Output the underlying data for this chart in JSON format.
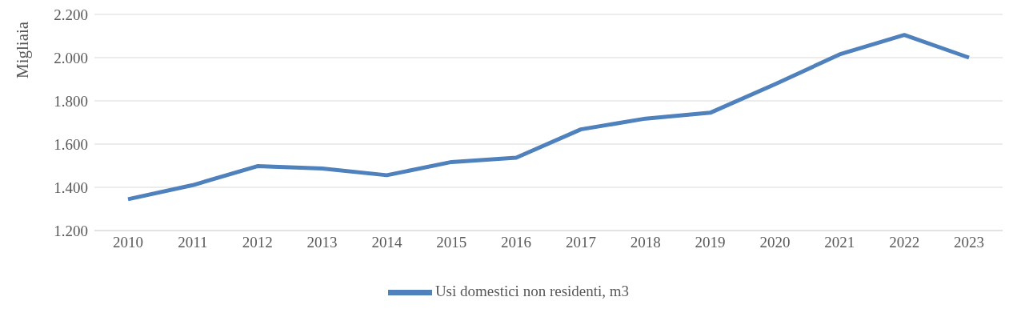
{
  "chart_data": {
    "type": "line",
    "ylabel": "Migliaia",
    "categories": [
      "2010",
      "2011",
      "2012",
      "2013",
      "2014",
      "2015",
      "2016",
      "2017",
      "2018",
      "2019",
      "2020",
      "2021",
      "2022",
      "2023"
    ],
    "series": [
      {
        "name": "Usi domestici non residenti, m3",
        "color": "#4f81bd",
        "values": [
          1345,
          1410,
          1498,
          1487,
          1456,
          1517,
          1537,
          1668,
          1718,
          1745,
          1877,
          2015,
          2105,
          2000
        ]
      }
    ],
    "ylim": [
      1200,
      2200
    ],
    "yticks": [
      {
        "value": 1200,
        "label": "1.200"
      },
      {
        "value": 1400,
        "label": "1.400"
      },
      {
        "value": 1600,
        "label": "1.600"
      },
      {
        "value": 1800,
        "label": "1.800"
      },
      {
        "value": 2000,
        "label": "2.000"
      },
      {
        "value": 2200,
        "label": "2.200"
      }
    ],
    "grid": "y",
    "legend": "bottom",
    "marker": "none",
    "line_style": "solid"
  }
}
